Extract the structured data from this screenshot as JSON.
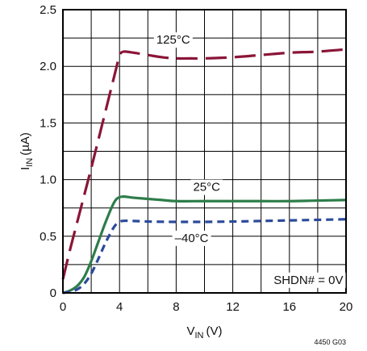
{
  "chart_data": {
    "type": "line",
    "xlabel": {
      "main": "V",
      "sub": "IN",
      "unit": "(V)"
    },
    "ylabel": {
      "main": "I",
      "sub": "IN",
      "unit": "(µA)"
    },
    "xlim": [
      0,
      20
    ],
    "ylim": [
      0,
      2.5
    ],
    "xticks": [
      "0",
      "4",
      "8",
      "12",
      "16",
      "20"
    ],
    "yticks": [
      "0",
      "0.5",
      "1.0",
      "1.5",
      "2.0",
      "2.5"
    ],
    "grid": true,
    "series": [
      {
        "name": "125°C",
        "color": "#8b1538",
        "dash": "long",
        "x": [
          0,
          0.5,
          1,
          1.5,
          2,
          2.5,
          3,
          3.5,
          3.8,
          4,
          4.3,
          5,
          6,
          7,
          8,
          9,
          10,
          12,
          14,
          16,
          18,
          20
        ],
        "y": [
          0.12,
          0.38,
          0.62,
          0.86,
          1.1,
          1.35,
          1.6,
          1.85,
          2.0,
          2.1,
          2.13,
          2.12,
          2.1,
          2.08,
          2.07,
          2.07,
          2.07,
          2.08,
          2.1,
          2.12,
          2.13,
          2.15
        ]
      },
      {
        "name": "25°C",
        "color": "#2e7d4a",
        "dash": "solid",
        "x": [
          0,
          0.5,
          1,
          1.5,
          2,
          2.5,
          3,
          3.5,
          3.8,
          4.2,
          5,
          6,
          7,
          8,
          10,
          12,
          14,
          16,
          18,
          20
        ],
        "y": [
          0,
          0.02,
          0.06,
          0.14,
          0.28,
          0.45,
          0.62,
          0.77,
          0.83,
          0.85,
          0.84,
          0.83,
          0.82,
          0.81,
          0.81,
          0.81,
          0.81,
          0.81,
          0.815,
          0.82
        ]
      },
      {
        "name": "–40°C",
        "color": "#2b4a9b",
        "dash": "short",
        "x": [
          0,
          0.5,
          1,
          1.5,
          2,
          2.5,
          3,
          3.5,
          3.8,
          4.2,
          5,
          6,
          7,
          8,
          10,
          12,
          14,
          16,
          18,
          20
        ],
        "y": [
          0,
          0.01,
          0.03,
          0.08,
          0.17,
          0.3,
          0.44,
          0.56,
          0.61,
          0.635,
          0.635,
          0.63,
          0.628,
          0.627,
          0.627,
          0.63,
          0.635,
          0.64,
          0.645,
          0.65
        ]
      }
    ],
    "annotations": [
      {
        "text": "125°C",
        "x": 6.6,
        "y": 2.2
      },
      {
        "text": "25°C",
        "x": 9.2,
        "y": 0.9
      },
      {
        "text": "–40°C",
        "x": 7.9,
        "y": 0.45
      },
      {
        "text": "SHDN# = 0V",
        "x": 19.8,
        "y": 0.08
      }
    ],
    "figure_code": "4450 G03"
  }
}
